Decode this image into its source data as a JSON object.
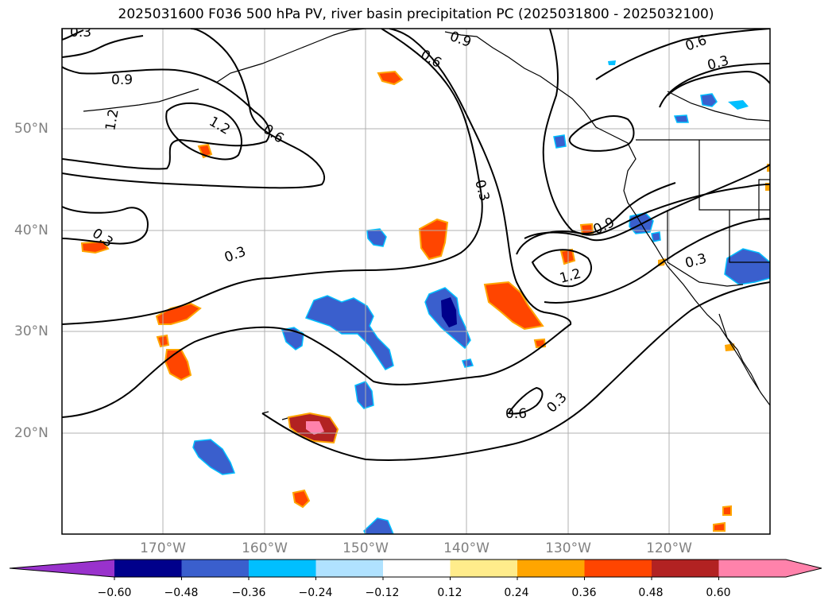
{
  "title": "2025031600 F036 500 hPa PV, river basin precipitation PC (2025031800 - 2025032100)",
  "lat_labels": [
    "50°N",
    "40°N",
    "30°N",
    "20°N"
  ],
  "lon_labels": [
    "170°W",
    "160°W",
    "150°W",
    "140°W",
    "130°W",
    "120°W"
  ],
  "contour_labels": [
    "0.3",
    "0.9",
    "1.2",
    "0.6",
    "0.6",
    "0.9",
    "0.6",
    "0.3",
    "0.3",
    "0.3",
    "0.9",
    "1.2",
    "0.3",
    "0.3",
    "0.6",
    "0.3",
    "1.2"
  ],
  "colorbar": {
    "ticks": [
      "−0.60",
      "−0.48",
      "−0.36",
      "−0.24",
      "−0.12",
      "0.12",
      "0.24",
      "0.36",
      "0.48",
      "0.60"
    ],
    "colors": [
      "#9932cc",
      "#00008b",
      "#3a5fcd",
      "#00bfff",
      "#b0e2ff",
      "#ffffff",
      "#ffec8b",
      "#ffa500",
      "#ff4500",
      "#b22222",
      "#ff82ab",
      "#ff82ab"
    ]
  }
}
